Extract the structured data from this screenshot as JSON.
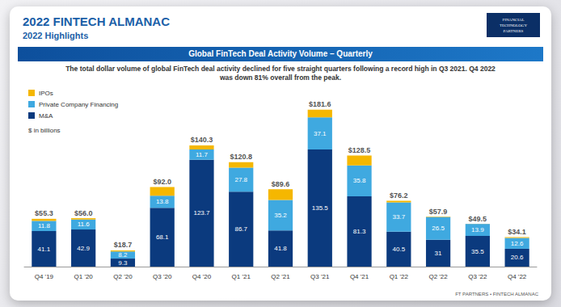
{
  "header": {
    "title": "2022 FINTECH ALMANAC",
    "subtitle": "2022 Highlights",
    "logo": "FINANCIAL TECHNOLOGY PARTNERS",
    "banner": "Global FinTech Deal Activity Volume – Quarterly",
    "description": "The total dollar volume of global FinTech deal activity declined for five straight quarters following a record high in Q3 2021. Q4 2022 was down 81% overall from the peak.",
    "footer": "FT PARTNERS • FINTECH ALMANAC"
  },
  "chart_data": {
    "type": "bar",
    "stacked": true,
    "legend": "top-left",
    "tick_labels": "x",
    "grid": false,
    "data_labels": true,
    "unit": "$ in billions",
    "categories": [
      "Q4 '19",
      "Q1 '20",
      "Q2 '20",
      "Q3 '20",
      "Q4 '20",
      "Q1 '21",
      "Q2 '21",
      "Q3 '21",
      "Q4 '21",
      "Q1 '22",
      "Q2 '22",
      "Q3 '22",
      "Q4 '22"
    ],
    "ylim": [
      0,
      200
    ],
    "series": [
      {
        "name": "M&A",
        "color": "#0b3a7e",
        "values": [
          41.1,
          42.9,
          9.3,
          68.1,
          123.7,
          86.7,
          41.8,
          135.5,
          81.3,
          40.5,
          31.0,
          35.5,
          20.6
        ]
      },
      {
        "name": "Private Company Financing",
        "color": "#3fa9e0",
        "values": [
          11.8,
          11.6,
          8.2,
          13.8,
          11.7,
          27.8,
          35.2,
          37.1,
          35.8,
          33.7,
          26.5,
          13.9,
          12.6
        ]
      },
      {
        "name": "IPOs",
        "color": "#f5b700",
        "values": [
          2.4,
          1.5,
          1.2,
          10.1,
          4.9,
          6.3,
          12.6,
          9.0,
          11.4,
          2.0,
          0.4,
          0.1,
          0.9
        ]
      }
    ],
    "totals": [
      55.3,
      56.0,
      18.7,
      92.0,
      140.3,
      120.8,
      89.6,
      181.6,
      128.5,
      76.2,
      57.9,
      49.5,
      34.1
    ],
    "total_labels": [
      "$55.3",
      "$56.0",
      "$18.7",
      "$92.0",
      "$140.3",
      "$120.8",
      "$89.6",
      "$181.6",
      "$128.5",
      "$76.2",
      "$57.9",
      "$49.5",
      "$34.1"
    ]
  }
}
